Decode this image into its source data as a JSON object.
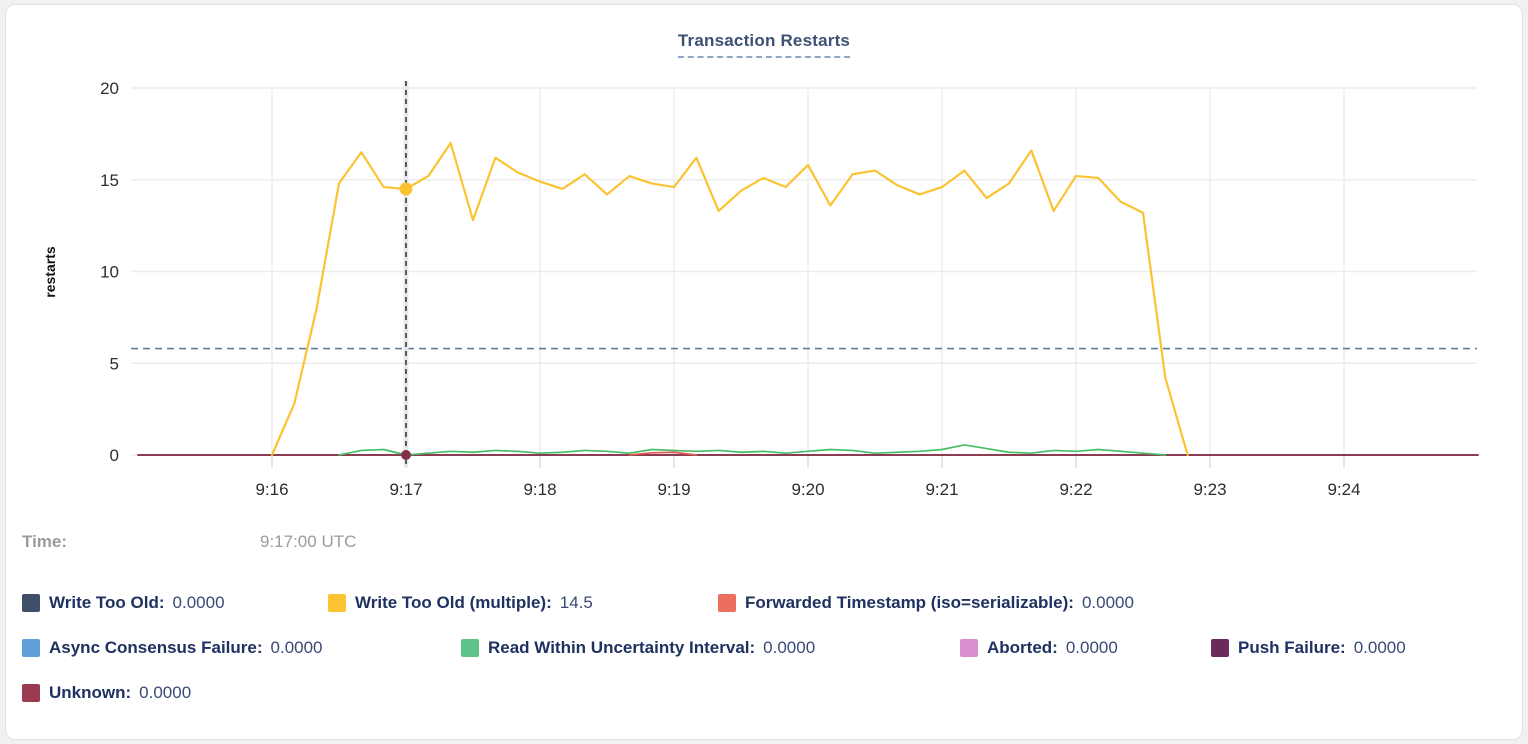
{
  "card": {
    "title": "Transaction Restarts"
  },
  "hover": {
    "time_label": "Time:",
    "time_value": "9:17:00 UTC",
    "t_seconds": 120,
    "highlighted_series": "Write Too Old (multiple)",
    "highlighted_value": 14.5
  },
  "chart_data": {
    "type": "line",
    "title": "Transaction Restarts",
    "xlabel": "",
    "ylabel": "restarts",
    "ylim": [
      0,
      20
    ],
    "yticks": [
      0,
      5,
      10,
      15,
      20
    ],
    "x_domain": [
      "9:15:00",
      "9:25:00"
    ],
    "xticks": [
      {
        "t": 60,
        "label": "9:16"
      },
      {
        "t": 120,
        "label": "9:17"
      },
      {
        "t": 180,
        "label": "9:18"
      },
      {
        "t": 240,
        "label": "9:19"
      },
      {
        "t": 300,
        "label": "9:20"
      },
      {
        "t": 360,
        "label": "9:21"
      },
      {
        "t": 420,
        "label": "9:22"
      },
      {
        "t": 480,
        "label": "9:23"
      },
      {
        "t": 540,
        "label": "9:24"
      }
    ],
    "grid": true,
    "avg_dashed_line_value": 5.8,
    "crosshair": {
      "t": 120,
      "dot_values": {
        "Write Too Old (multiple)": 14.5,
        "Unknown": 0
      }
    },
    "series": [
      {
        "name": "Write Too Old",
        "color": "#3f4e68",
        "t0": 0,
        "dt": 600,
        "values": [
          0,
          0
        ]
      },
      {
        "name": "Unknown",
        "color": "#913349",
        "t0": 0,
        "dt": 600,
        "values": [
          0,
          0
        ]
      },
      {
        "name": "Forwarded Timestamp (iso=serializable)",
        "color": "#dd5c50",
        "t0": 220,
        "dt": 10,
        "values": [
          0,
          0.12,
          0.15,
          0
        ]
      },
      {
        "name": "Read Within Uncertainty Interval",
        "color": "#48bd68",
        "t0": 90,
        "dt": 10,
        "values": [
          0,
          0.25,
          0.3,
          0,
          0.1,
          0.2,
          0.15,
          0.25,
          0.2,
          0.1,
          0.15,
          0.25,
          0.2,
          0.1,
          0.3,
          0.25,
          0.2,
          0.25,
          0.15,
          0.2,
          0.1,
          0.2,
          0.3,
          0.25,
          0.1,
          0.15,
          0.2,
          0.3,
          0.55,
          0.35,
          0.15,
          0.1,
          0.25,
          0.2,
          0.3,
          0.2,
          0.1,
          0
        ]
      },
      {
        "name": "Write Too Old (multiple)",
        "color": "#fbc332",
        "t0": 60,
        "dt": 10,
        "values": [
          0,
          2.8,
          8,
          14.8,
          16.5,
          14.6,
          14.5,
          15.2,
          17,
          12.8,
          16.2,
          15.4,
          14.9,
          14.5,
          15.3,
          14.2,
          15.2,
          14.8,
          14.6,
          16.2,
          13.3,
          14.4,
          15.1,
          14.6,
          15.8,
          13.6,
          15.3,
          15.5,
          14.7,
          14.2,
          14.6,
          15.5,
          14,
          14.8,
          16.6,
          13.3,
          15.2,
          15.1,
          13.8,
          13.2,
          4.2,
          0
        ]
      }
    ],
    "legend_position": "bottom"
  },
  "legend": {
    "rows": [
      {
        "items": [
          {
            "label": "Write Too Old:",
            "value": "0.0000",
            "color": "#3f4e68"
          },
          {
            "label": "Write Too Old (multiple):",
            "value": "14.5",
            "color": "#fcc333"
          },
          {
            "label": "Forwarded Timestamp (iso=serializable):",
            "value": "0.0000",
            "color": "#ec6e5f"
          }
        ]
      },
      {
        "items": [
          {
            "label": "Async Consensus Failure:",
            "value": "0.0000",
            "color": "#61a0d8"
          },
          {
            "label": "Read Within Uncertainty Interval:",
            "value": "0.0000",
            "color": "#5dc389"
          },
          {
            "label": "Aborted:",
            "value": "0.0000",
            "color": "#d78fd0"
          },
          {
            "label": "Push Failure:",
            "value": "0.0000",
            "color": "#692b5c"
          }
        ]
      },
      {
        "items": [
          {
            "label": "Unknown:",
            "value": "0.0000",
            "color": "#9b3a50"
          }
        ]
      }
    ]
  },
  "colors": {
    "grid": "#ececec",
    "axis_text": "#2e2e2e",
    "avg_dashed_line": "#5c7e9c",
    "crosshair_line": "#2d4a60",
    "crosshair_band": "#e8e8e8",
    "title_text": "#3d5174",
    "legend_label_text": "#1e3160",
    "muted_text": "#9b9b9b"
  }
}
